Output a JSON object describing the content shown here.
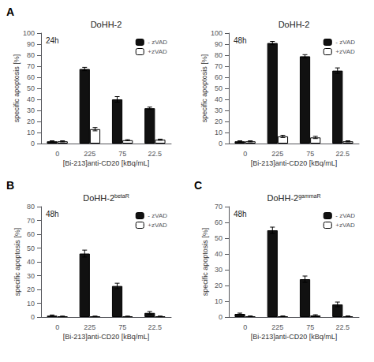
{
  "chart_data": [
    {
      "type": "bar",
      "panel_label": "A",
      "title": "DoHH-2",
      "subtitle": "24h",
      "xlabel": "[Bi-213]anti-CD20 [kBq/mL]",
      "ylabel": "specific apoptosis [%]",
      "categories": [
        "0",
        "225",
        "75",
        "22.5"
      ],
      "series": [
        {
          "name": "- zVAD",
          "color": "#111111",
          "values": [
            2.0,
            67.5,
            40.0,
            32.0
          ],
          "errors": [
            0.5,
            1.5,
            2.5,
            1.0
          ]
        },
        {
          "name": "+zVAD",
          "color": "#ffffff",
          "values": [
            2.0,
            13.0,
            3.0,
            3.5
          ],
          "errors": [
            0.5,
            1.5,
            0.5,
            0.5
          ]
        }
      ],
      "ylim": [
        0,
        100
      ],
      "yticks": [
        0,
        10,
        20,
        30,
        40,
        50,
        60,
        70,
        80,
        90,
        100
      ],
      "grid": false,
      "legend": "upper right"
    },
    {
      "type": "bar",
      "title": "DoHH-2",
      "subtitle": "48h",
      "xlabel": "[Bi-213]anti-CD20 [kBq/mL]",
      "ylabel": "specific apoptosis [%]",
      "categories": [
        "0",
        "225",
        "75",
        "22.5"
      ],
      "series": [
        {
          "name": "- zVAD",
          "color": "#111111",
          "values": [
            2.0,
            91.0,
            79.0,
            66.0
          ],
          "errors": [
            0.5,
            1.5,
            1.5,
            2.5
          ]
        },
        {
          "name": "+zVAD",
          "color": "#ffffff",
          "values": [
            2.0,
            6.5,
            5.5,
            2.0
          ],
          "errors": [
            0.5,
            1.0,
            1.0,
            0.5
          ]
        }
      ],
      "ylim": [
        0,
        100
      ],
      "yticks": [
        0,
        10,
        20,
        30,
        40,
        50,
        60,
        70,
        80,
        90,
        100
      ],
      "grid": false,
      "legend": "upper right"
    },
    {
      "type": "bar",
      "panel_label": "B",
      "title": "DoHH-2",
      "title_superscript": "betaR",
      "subtitle": "48h",
      "xlabel": "[Bi-213]anti-CD20 [kBq/mL]",
      "ylabel": "specific apoptosis [%]",
      "categories": [
        "0",
        "225",
        "75",
        "22.5"
      ],
      "series": [
        {
          "name": "- zVAD",
          "color": "#111111",
          "values": [
            1.0,
            46.0,
            22.5,
            3.0
          ],
          "errors": [
            0.5,
            2.5,
            2.0,
            1.0
          ]
        },
        {
          "name": "+zVAD",
          "color": "#ffffff",
          "values": [
            0.5,
            0.5,
            0.5,
            0.5
          ],
          "errors": [
            0.2,
            0.2,
            0.2,
            0.2
          ]
        }
      ],
      "ylim": [
        0,
        80
      ],
      "yticks": [
        0,
        10,
        20,
        30,
        40,
        50,
        60,
        70,
        80
      ],
      "grid": false,
      "legend": "upper right"
    },
    {
      "type": "bar",
      "panel_label": "C",
      "title": "DoHH-2",
      "title_superscript": "gammaR",
      "subtitle": "48h",
      "xlabel": "[Bi-213]anti-CD20 [kBq/mL]",
      "ylabel": "specific apoptosis [%]",
      "categories": [
        "0",
        "225",
        "75",
        "22.5"
      ],
      "series": [
        {
          "name": "- zVAD",
          "color": "#111111",
          "values": [
            2.0,
            55.0,
            24.0,
            8.0
          ],
          "errors": [
            0.5,
            2.0,
            2.0,
            1.5
          ]
        },
        {
          "name": "+zVAD",
          "color": "#ffffff",
          "values": [
            0.5,
            0.5,
            1.0,
            0.5
          ],
          "errors": [
            0.2,
            0.2,
            0.5,
            0.2
          ]
        }
      ],
      "ylim": [
        0,
        70
      ],
      "yticks": [
        0,
        10,
        20,
        30,
        40,
        50,
        60,
        70
      ],
      "grid": false,
      "legend": "upper right"
    }
  ]
}
